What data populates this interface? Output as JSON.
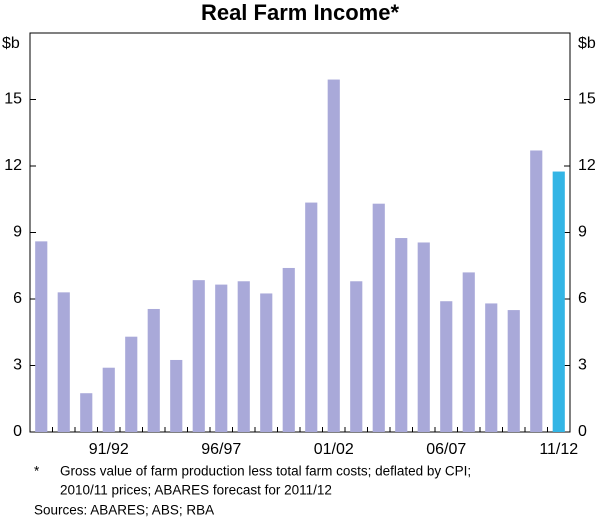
{
  "chart_data": {
    "type": "bar",
    "title": "Real Farm Income*",
    "y_unit_left": "$b",
    "y_unit_right": "$b",
    "categories": [
      null,
      null,
      null,
      "91/92",
      null,
      null,
      null,
      null,
      "96/97",
      null,
      null,
      null,
      null,
      "01/02",
      null,
      null,
      null,
      null,
      "06/07",
      null,
      null,
      null,
      null,
      "11/12"
    ],
    "values": [
      8.6,
      6.3,
      1.75,
      2.9,
      4.3,
      5.55,
      3.25,
      6.85,
      6.65,
      6.8,
      6.25,
      7.4,
      10.35,
      15.9,
      6.8,
      10.3,
      8.75,
      8.55,
      5.9,
      7.2,
      5.8,
      5.5,
      12.7,
      11.75
    ],
    "colors": [
      "#a9a9d9",
      "#a9a9d9",
      "#a9a9d9",
      "#a9a9d9",
      "#a9a9d9",
      "#a9a9d9",
      "#a9a9d9",
      "#a9a9d9",
      "#a9a9d9",
      "#a9a9d9",
      "#a9a9d9",
      "#a9a9d9",
      "#a9a9d9",
      "#a9a9d9",
      "#a9a9d9",
      "#a9a9d9",
      "#a9a9d9",
      "#a9a9d9",
      "#a9a9d9",
      "#a9a9d9",
      "#a9a9d9",
      "#a9a9d9",
      "#a9a9d9",
      "#33b5e5"
    ],
    "ylim": [
      0,
      18
    ],
    "yticks": [
      0,
      3,
      6,
      9,
      12,
      15
    ],
    "grid": false,
    "footnotes": [
      "*",
      "Gross value of farm production less total farm costs; deflated by CPI;",
      "2010/11 prices; ABARES forecast for 2011/12",
      "Sources: ABARES; ABS; RBA"
    ]
  }
}
